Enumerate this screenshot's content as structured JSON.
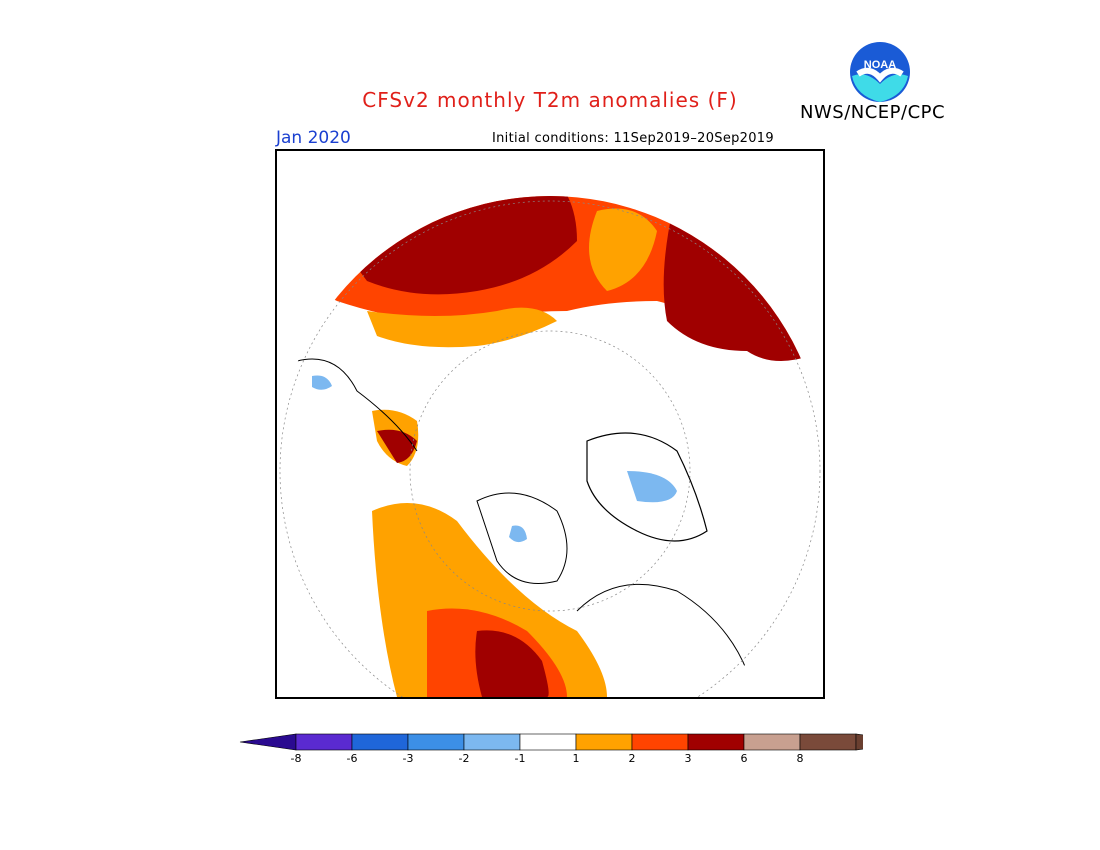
{
  "header": {
    "title": "CFSv2 monthly T2m anomalies (F)",
    "agency": "NWS/NCEP/CPC",
    "month": "Jan 2020",
    "initial_conditions": "Initial conditions: 11Sep2019–20Sep2019"
  },
  "logo": {
    "icon": "noaa-logo-icon",
    "text": "NOAA"
  },
  "map": {
    "projection": "north-polar-stereographic",
    "variable": "T2m anomaly",
    "units": "F"
  },
  "colorbar": {
    "ticks": [
      "-8",
      "-6",
      "-3",
      "-2",
      "-1",
      "1",
      "2",
      "3",
      "6",
      "8"
    ],
    "colors": [
      "#5a2ad0",
      "#1f66d9",
      "#3c8fe6",
      "#7cb8f0",
      "#ffffff",
      "#ffa200",
      "#ff4400",
      "#a00000",
      "#c8a090",
      "#7a4a3a"
    ],
    "left_extension_color": "#2a0a90",
    "right_extension_color": "#6a3f30"
  }
}
